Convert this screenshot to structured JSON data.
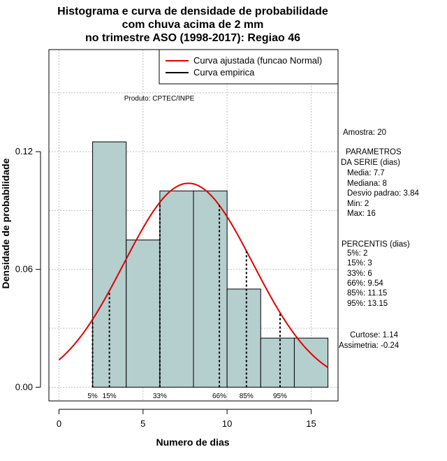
{
  "chart_data": {
    "type": "bar",
    "title_lines": [
      "Histograma e curva de densidade de probabilidade",
      "com chuva acima de 2 mm",
      "no trimestre ASO (1998-2017): Regiao 46"
    ],
    "xlabel": "Numero de dias",
    "ylabel": "Densidade de probabilidade",
    "xlim": [
      -0.6,
      16.6
    ],
    "ylim": [
      -0.007,
      0.172
    ],
    "x_ticks": [
      0,
      5,
      10,
      15
    ],
    "y_ticks": [
      0.0,
      0.06,
      0.12
    ],
    "y_tick_labels": [
      "0.00",
      "0.06",
      "0.12"
    ],
    "grid": true,
    "histogram": {
      "bin_edges": [
        2,
        4,
        6,
        8,
        10,
        12,
        14,
        16
      ],
      "densities": [
        0.125,
        0.075,
        0.1,
        0.1,
        0.05,
        0.025,
        0.025
      ],
      "color": "#b5cece"
    },
    "normal_curve": {
      "mean": 7.7,
      "sd": 3.84,
      "color": "#e00000",
      "x_range": [
        0,
        16
      ]
    },
    "percentiles": [
      {
        "label": "5%",
        "value": 2
      },
      {
        "label": "15%",
        "value": 3
      },
      {
        "label": "33%",
        "value": 6
      },
      {
        "label": "66%",
        "value": 9.54
      },
      {
        "label": "85%",
        "value": 11.15
      },
      {
        "label": "95%",
        "value": 13.15
      }
    ],
    "legend": [
      {
        "label": "Curva ajustada (funcao Normal)",
        "color": "#e00000"
      },
      {
        "label": "Curva empirica",
        "color": "#000000"
      }
    ],
    "annotation": "Produto: CPTEC/INPE",
    "stats_lines": [
      "Amostra: 20",
      "PARAMETROS",
      "DA SERIE (dias)",
      "Media: 7.7",
      "Mediana: 8",
      "Desvio padrao: 3.84",
      "Min: 2",
      "Max: 16",
      "PERCENTIS (dias)",
      "5%: 2",
      "15%: 3",
      "33%: 6",
      "66%: 9.54",
      "85%: 11.15",
      "95%: 13.15",
      "Curtose: 1.14",
      "Assimetria: -0.24"
    ]
  }
}
